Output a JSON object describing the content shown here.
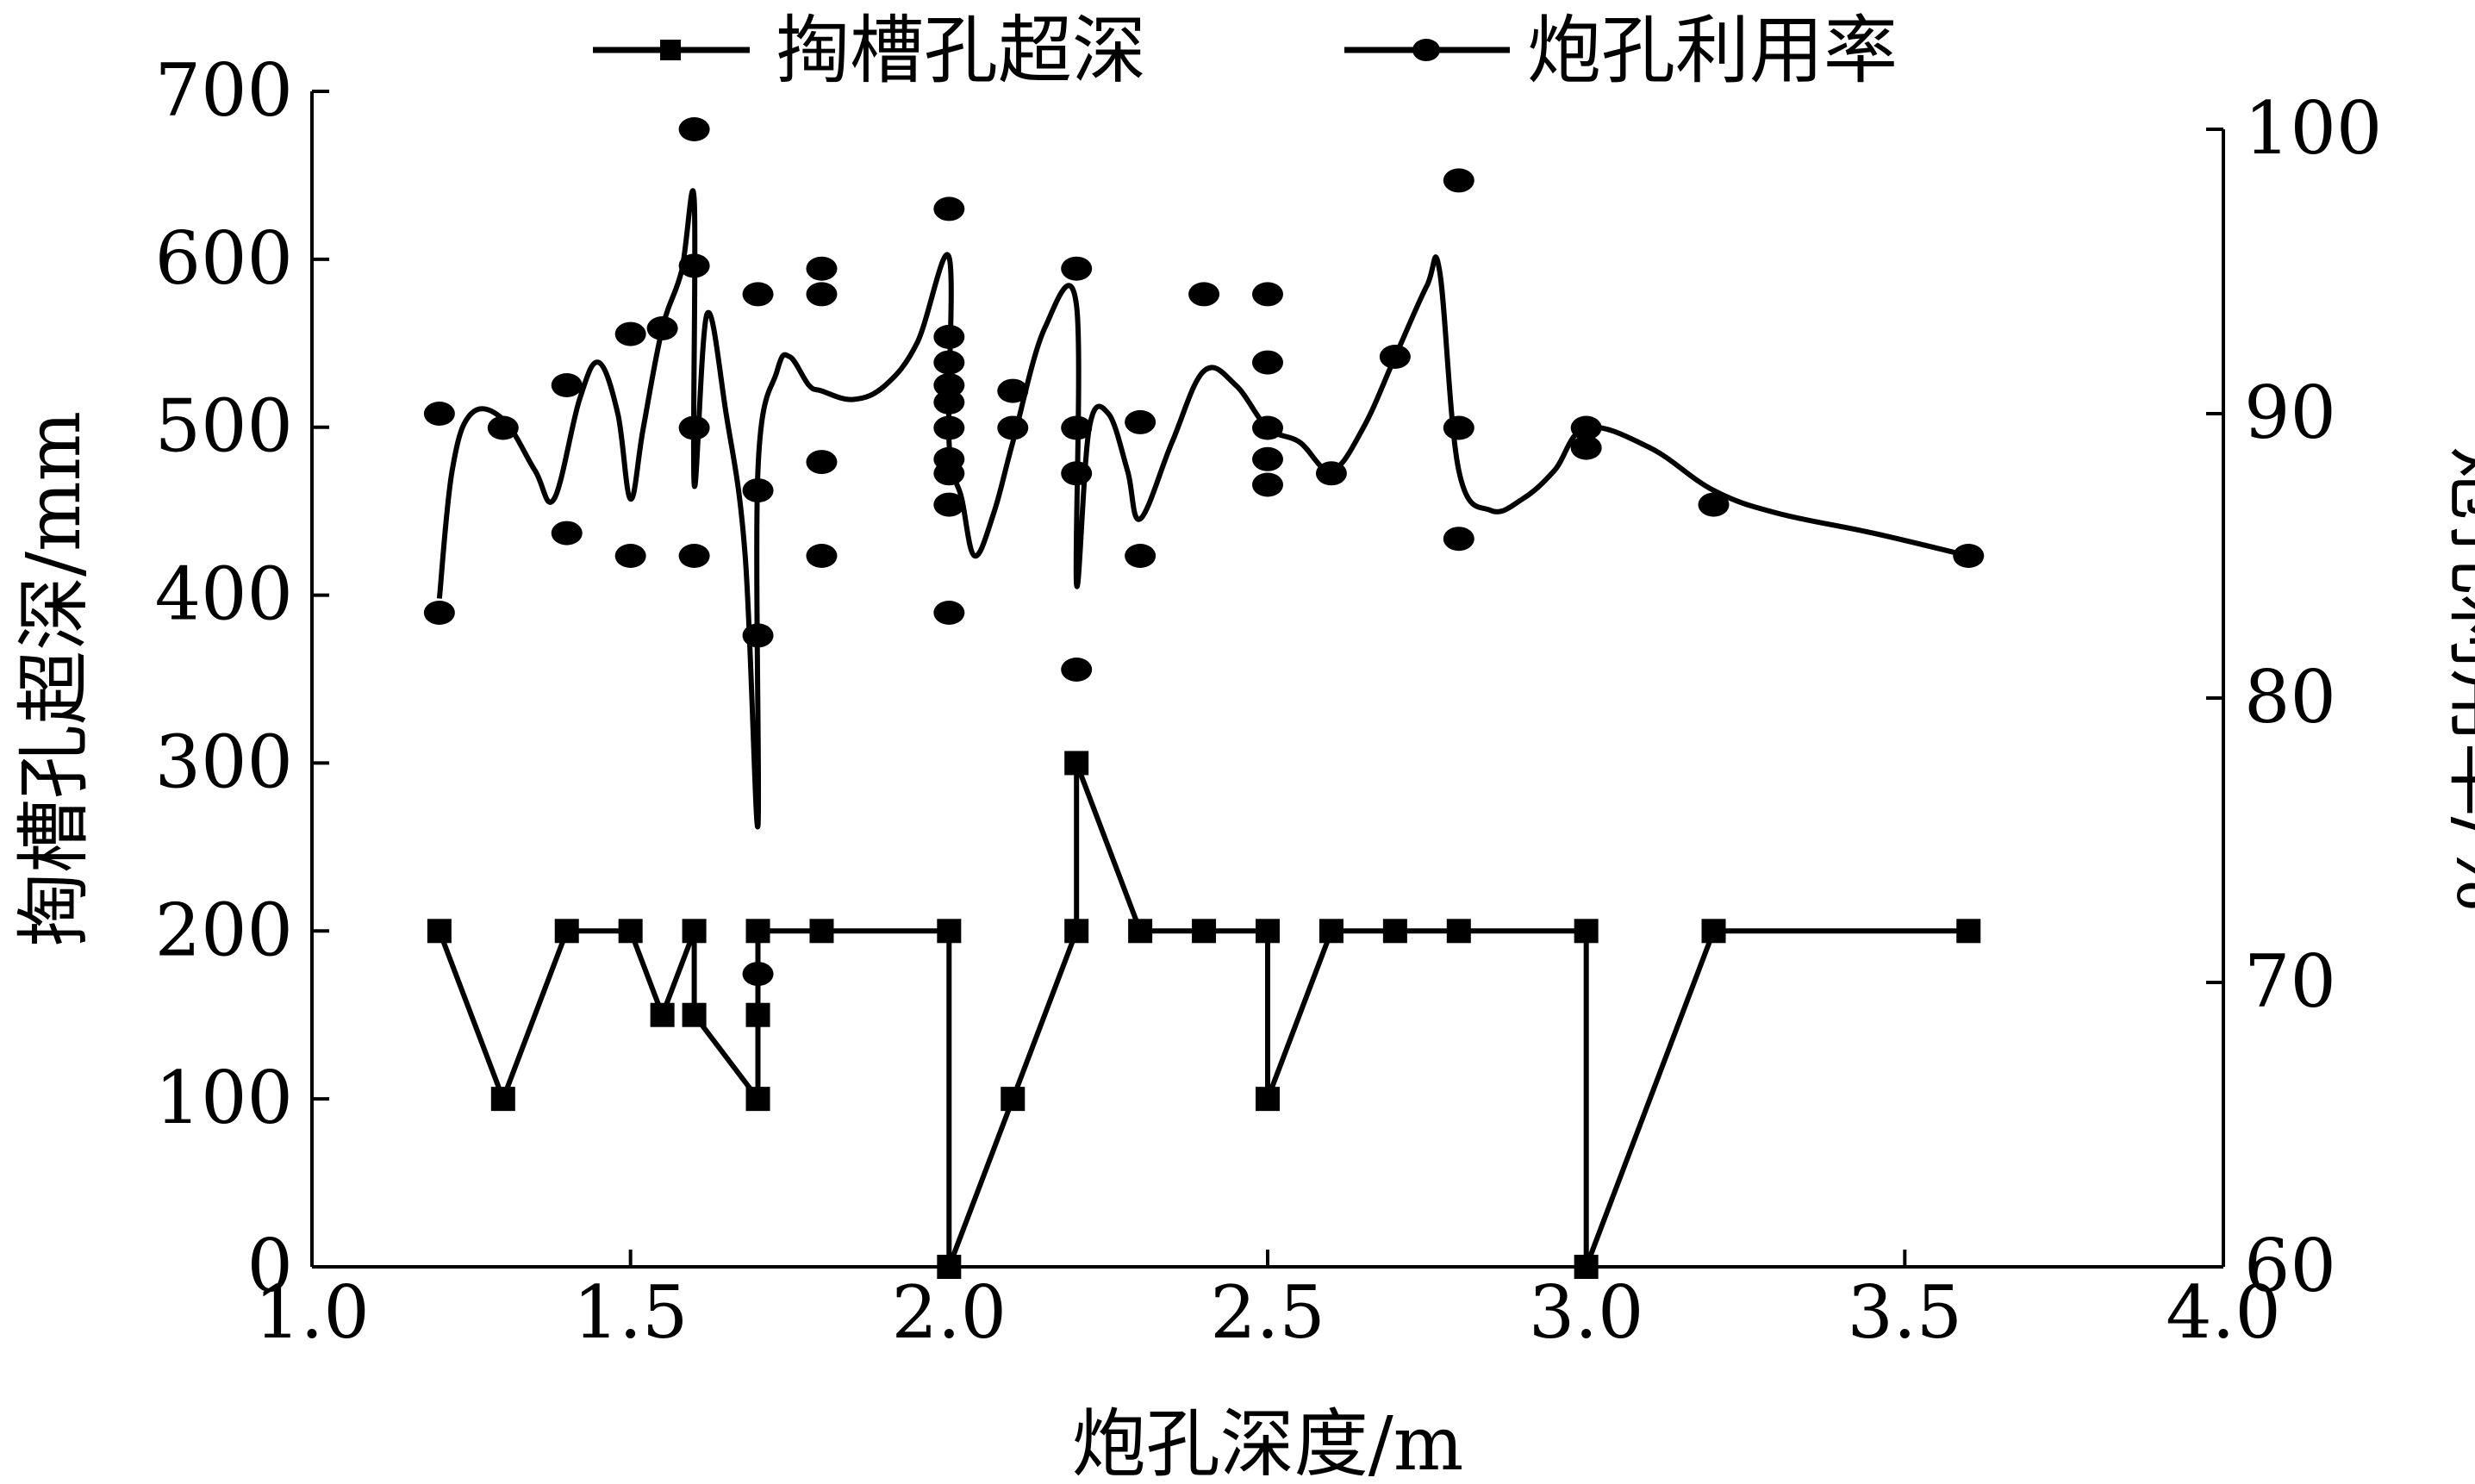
{
  "chart_data": {
    "type": "line",
    "xlabel": "炮孔深度/m",
    "ylabel_left": "掏槽孔超深/mm",
    "ylabel_right": "炮孔利用率/%",
    "xlim": [
      1.0,
      4.0
    ],
    "ylim_left": [
      0,
      700
    ],
    "ylim_right": [
      60,
      100
    ],
    "x_ticks": [
      "1.0",
      "1.5",
      "2.0",
      "2.5",
      "3.0",
      "3.5",
      "4.0"
    ],
    "y_left_ticks": [
      "0",
      "100",
      "200",
      "300",
      "400",
      "500",
      "600",
      "700"
    ],
    "y_right_ticks": [
      "60",
      "70",
      "80",
      "90",
      "100"
    ],
    "grid": false,
    "legend_position": "top",
    "series": [
      {
        "name": "掏槽孔超深",
        "axis": "left",
        "marker": "square",
        "x": [
          1.2,
          1.3,
          1.4,
          1.5,
          1.55,
          1.6,
          1.6,
          1.7,
          1.7,
          1.7,
          1.8,
          2.0,
          2.0,
          2.1,
          2.2,
          2.2,
          2.3,
          2.4,
          2.5,
          2.5,
          2.6,
          2.7,
          2.8,
          3.0,
          3.0,
          3.2,
          3.6
        ],
        "y": [
          200,
          100,
          200,
          200,
          150,
          200,
          150,
          100,
          150,
          200,
          200,
          200,
          0,
          100,
          200,
          300,
          200,
          200,
          200,
          100,
          200,
          200,
          200,
          200,
          0,
          200,
          200
        ]
      },
      {
        "name": "炮孔利用率",
        "axis": "right",
        "marker": "circle",
        "points": [
          [
            1.2,
            90.0
          ],
          [
            1.2,
            83.0
          ],
          [
            1.3,
            89.5
          ],
          [
            1.4,
            91.0
          ],
          [
            1.4,
            85.8
          ],
          [
            1.5,
            92.8
          ],
          [
            1.5,
            85.0
          ],
          [
            1.55,
            93.0
          ],
          [
            1.6,
            100.0
          ],
          [
            1.6,
            95.2
          ],
          [
            1.6,
            89.5
          ],
          [
            1.6,
            85.0
          ],
          [
            1.7,
            94.2
          ],
          [
            1.7,
            87.3
          ],
          [
            1.7,
            82.2
          ],
          [
            1.7,
            70.3
          ],
          [
            1.8,
            95.1
          ],
          [
            1.8,
            94.2
          ],
          [
            1.8,
            88.3
          ],
          [
            1.8,
            85.0
          ],
          [
            2.0,
            97.2
          ],
          [
            2.0,
            92.7
          ],
          [
            2.0,
            91.8
          ],
          [
            2.0,
            91.0
          ],
          [
            2.0,
            90.4
          ],
          [
            2.0,
            89.5
          ],
          [
            2.0,
            88.4
          ],
          [
            2.0,
            87.9
          ],
          [
            2.0,
            86.8
          ],
          [
            2.0,
            83.0
          ],
          [
            2.1,
            90.8
          ],
          [
            2.1,
            89.5
          ],
          [
            2.2,
            95.1
          ],
          [
            2.2,
            89.5
          ],
          [
            2.2,
            87.9
          ],
          [
            2.2,
            81.0
          ],
          [
            2.3,
            89.7
          ],
          [
            2.3,
            85.0
          ],
          [
            2.4,
            94.2
          ],
          [
            2.5,
            94.2
          ],
          [
            2.5,
            91.8
          ],
          [
            2.5,
            89.5
          ],
          [
            2.5,
            88.4
          ],
          [
            2.5,
            87.5
          ],
          [
            2.6,
            87.9
          ],
          [
            2.7,
            92.0
          ],
          [
            2.8,
            98.2
          ],
          [
            2.8,
            89.5
          ],
          [
            2.8,
            85.6
          ],
          [
            3.0,
            89.5
          ],
          [
            3.0,
            88.8
          ],
          [
            3.2,
            86.8
          ],
          [
            3.6,
            85.0
          ]
        ],
        "curve": [
          [
            1.2,
            83.5
          ],
          [
            1.22,
            88.0
          ],
          [
            1.25,
            90.0
          ],
          [
            1.3,
            89.8
          ],
          [
            1.35,
            88.0
          ],
          [
            1.38,
            87.0
          ],
          [
            1.42,
            90.5
          ],
          [
            1.45,
            91.8
          ],
          [
            1.48,
            90.0
          ],
          [
            1.5,
            87.0
          ],
          [
            1.52,
            89.5
          ],
          [
            1.55,
            93.0
          ],
          [
            1.58,
            95.0
          ],
          [
            1.6,
            97.5
          ],
          [
            1.6,
            87.5
          ],
          [
            1.62,
            93.5
          ],
          [
            1.65,
            90.0
          ],
          [
            1.68,
            85.0
          ],
          [
            1.7,
            75.5
          ],
          [
            1.7,
            88.0
          ],
          [
            1.73,
            91.5
          ],
          [
            1.75,
            92.0
          ],
          [
            1.78,
            91.0
          ],
          [
            1.8,
            90.8
          ],
          [
            1.85,
            90.5
          ],
          [
            1.9,
            91.0
          ],
          [
            1.95,
            92.5
          ],
          [
            2.0,
            95.5
          ],
          [
            2.0,
            89.0
          ],
          [
            2.02,
            87.0
          ],
          [
            2.04,
            85.0
          ],
          [
            2.07,
            86.5
          ],
          [
            2.1,
            89.0
          ],
          [
            2.15,
            93.0
          ],
          [
            2.2,
            93.8
          ],
          [
            2.2,
            84.0
          ],
          [
            2.22,
            89.5
          ],
          [
            2.25,
            90.0
          ],
          [
            2.28,
            88.0
          ],
          [
            2.3,
            86.3
          ],
          [
            2.35,
            89.0
          ],
          [
            2.4,
            91.5
          ],
          [
            2.45,
            91.0
          ],
          [
            2.5,
            89.5
          ],
          [
            2.55,
            89.0
          ],
          [
            2.6,
            88.0
          ],
          [
            2.65,
            89.5
          ],
          [
            2.7,
            92.0
          ],
          [
            2.75,
            94.5
          ],
          [
            2.77,
            95.0
          ],
          [
            2.8,
            88.0
          ],
          [
            2.85,
            86.6
          ],
          [
            2.9,
            87.0
          ],
          [
            2.95,
            88.0
          ],
          [
            3.0,
            89.5
          ],
          [
            3.1,
            88.8
          ],
          [
            3.2,
            87.3
          ],
          [
            3.3,
            86.5
          ],
          [
            3.45,
            85.8
          ],
          [
            3.6,
            85.0
          ]
        ]
      }
    ]
  }
}
